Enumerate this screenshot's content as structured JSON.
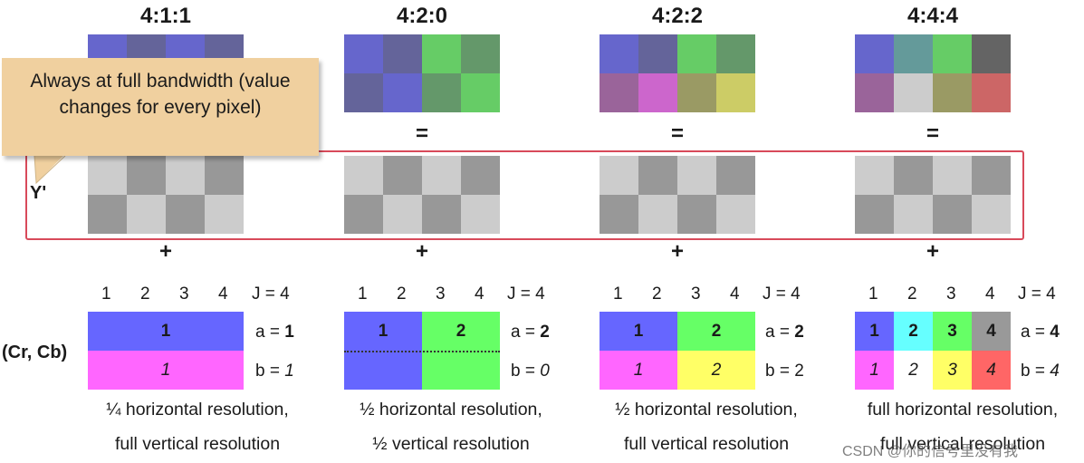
{
  "callout": {
    "text": "Always at full bandwidth (value changes for every pixel)"
  },
  "y_label": "Y'",
  "chroma_label": "(Cr, Cb)",
  "operators": {
    "equals": "=",
    "plus": "+"
  },
  "colors": {
    "luma_light": "#cccccc",
    "luma_dark": "#989898",
    "chroma_blue": "#6666ff",
    "chroma_magenta": "#ff66ff",
    "chroma_green": "#66ff66",
    "chroma_cyan": "#66ffff",
    "chroma_yellow": "#ffff66",
    "chroma_gray": "#999999",
    "chroma_red": "#ff6666",
    "highlight_border": "#d84a5a",
    "callout_fill": "#f0d09f"
  },
  "schemes": [
    {
      "id": "411",
      "title": "4:1:1",
      "column_indices": [
        "1",
        "2",
        "3",
        "4"
      ],
      "j_label": "J = 4",
      "a_label": "a = ",
      "a_value": "1",
      "b_label": "b = ",
      "b_value": "1",
      "chroma_row_a": [
        "1"
      ],
      "chroma_row_b": [
        "1"
      ],
      "resolution_line1": "¼ horizontal resolution,",
      "resolution_line2": "full vertical resolution"
    },
    {
      "id": "420",
      "title": "4:2:0",
      "column_indices": [
        "1",
        "2",
        "3",
        "4"
      ],
      "j_label": "J = 4",
      "a_label": "a = ",
      "a_value": "2",
      "b_label": "b = ",
      "b_value": "0",
      "chroma_row_a": [
        "1",
        "2"
      ],
      "chroma_row_b": [],
      "resolution_line1": "½ horizontal resolution,",
      "resolution_line2": "½ vertical resolution"
    },
    {
      "id": "422",
      "title": "4:2:2",
      "column_indices": [
        "1",
        "2",
        "3",
        "4"
      ],
      "j_label": "J = 4",
      "a_label": "a = ",
      "a_value": "2",
      "b_label": "b = ",
      "b_value": "2",
      "chroma_row_a": [
        "1",
        "2"
      ],
      "chroma_row_b": [
        "1",
        "2"
      ],
      "resolution_line1": "½ horizontal resolution,",
      "resolution_line2": "full vertical resolution"
    },
    {
      "id": "444",
      "title": "4:4:4",
      "column_indices": [
        "1",
        "2",
        "3",
        "4"
      ],
      "j_label": "J = 4",
      "a_label": "a = ",
      "a_value": "4",
      "b_label": "b = ",
      "b_value": "4",
      "chroma_row_a": [
        "1",
        "2",
        "3",
        "4"
      ],
      "chroma_row_b": [
        "1",
        "2",
        "3",
        "4"
      ],
      "resolution_line1": "full horizontal resolution,",
      "resolution_line2": "full vertical resolution"
    }
  ],
  "watermark": "CSDN @你的信号里没有我"
}
